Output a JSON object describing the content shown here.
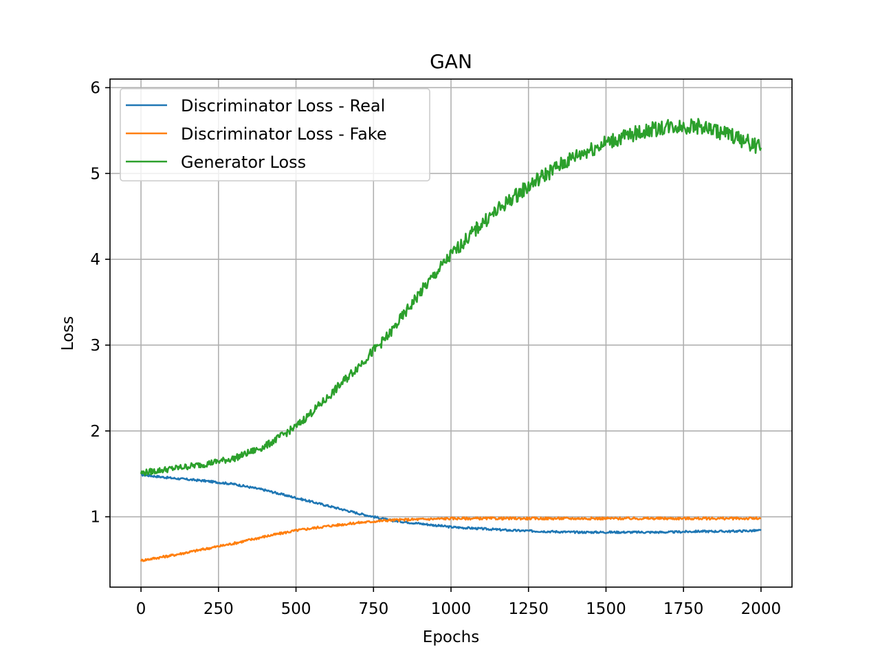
{
  "chart_data": {
    "type": "line",
    "title": "GAN",
    "xlabel": "Epochs",
    "ylabel": "Loss",
    "xlim": [
      -100,
      2100
    ],
    "ylim": [
      0.18,
      6.1
    ],
    "xticks": [
      0,
      250,
      500,
      750,
      1000,
      1250,
      1500,
      1750,
      2000
    ],
    "xtick_labels": [
      "0",
      "250",
      "500",
      "750",
      "1000",
      "1250",
      "1500",
      "1750",
      "2000"
    ],
    "yticks": [
      1,
      2,
      3,
      4,
      5,
      6
    ],
    "ytick_labels": [
      "1",
      "2",
      "3",
      "4",
      "5",
      "6"
    ],
    "grid": true,
    "legend_position": "top-left",
    "series": [
      {
        "name": "Discriminator Loss - Real",
        "color": "#1f77b4",
        "x": [
          0,
          100,
          200,
          300,
          400,
          500,
          600,
          700,
          800,
          900,
          1000,
          1100,
          1200,
          1300,
          1400,
          1500,
          1600,
          1700,
          1800,
          1900,
          2000
        ],
        "values": [
          1.49,
          1.45,
          1.42,
          1.38,
          1.31,
          1.22,
          1.13,
          1.04,
          0.96,
          0.92,
          0.88,
          0.86,
          0.84,
          0.83,
          0.82,
          0.82,
          0.82,
          0.82,
          0.83,
          0.83,
          0.84
        ]
      },
      {
        "name": "Discriminator Loss - Fake",
        "color": "#ff7f0e",
        "x": [
          0,
          100,
          200,
          300,
          400,
          500,
          600,
          700,
          800,
          900,
          1000,
          1100,
          1200,
          1300,
          1400,
          1500,
          1600,
          1700,
          1800,
          1900,
          2000
        ],
        "values": [
          0.49,
          0.55,
          0.62,
          0.69,
          0.77,
          0.84,
          0.89,
          0.93,
          0.96,
          0.97,
          0.98,
          0.98,
          0.98,
          0.98,
          0.98,
          0.98,
          0.98,
          0.98,
          0.98,
          0.98,
          0.98
        ]
      },
      {
        "name": "Generator Loss",
        "color": "#2ca02c",
        "x": [
          0,
          100,
          200,
          300,
          400,
          500,
          600,
          700,
          800,
          900,
          1000,
          1100,
          1200,
          1300,
          1400,
          1500,
          1600,
          1700,
          1800,
          1900,
          2000
        ],
        "values": [
          1.51,
          1.56,
          1.61,
          1.68,
          1.82,
          2.05,
          2.38,
          2.75,
          3.12,
          3.61,
          4.05,
          4.42,
          4.72,
          4.98,
          5.2,
          5.36,
          5.47,
          5.55,
          5.55,
          5.45,
          5.3
        ]
      }
    ]
  }
}
